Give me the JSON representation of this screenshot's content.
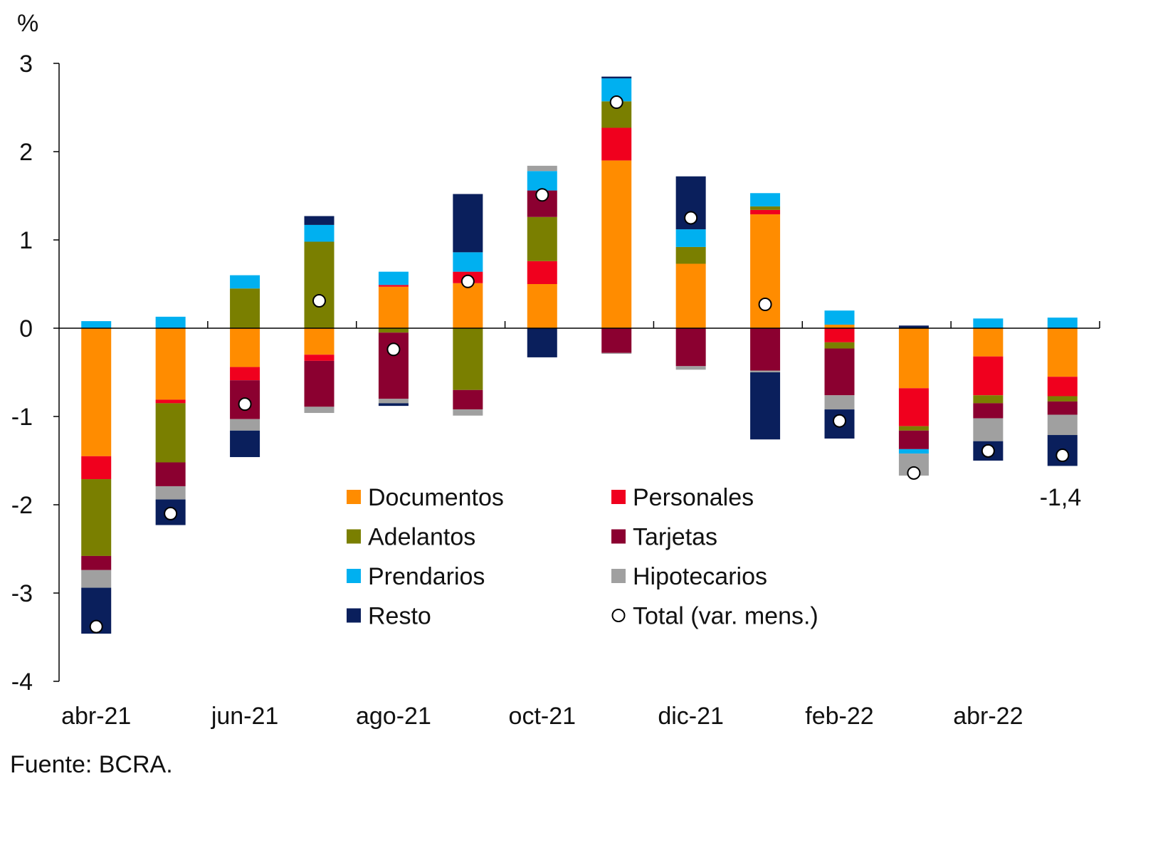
{
  "chart_data": {
    "type": "bar",
    "stacked": true,
    "ylabel": "%",
    "ylim": [
      -4,
      3
    ],
    "yticks": [
      3,
      2,
      1,
      0,
      -1,
      -2,
      -3,
      -4
    ],
    "grid": false,
    "legend_placement": "bottom-center",
    "categories": [
      "abr-21",
      "may-21",
      "jun-21",
      "jul-21",
      "ago-21",
      "sep-21",
      "oct-21",
      "nov-21",
      "dic-21",
      "ene-22",
      "feb-22",
      "mar-22",
      "abr-22",
      "may-22"
    ],
    "xtick_labels": [
      "abr-21",
      "jun-21",
      "ago-21",
      "oct-21",
      "dic-21",
      "feb-22",
      "abr-22"
    ],
    "series": [
      {
        "name": "Documentos",
        "color": "#FF8C00",
        "values": [
          -1.45,
          -0.81,
          -0.44,
          -0.3,
          0.47,
          0.51,
          0.5,
          1.9,
          0.73,
          1.29,
          0.04,
          -0.68,
          -0.32,
          -0.55
        ]
      },
      {
        "name": "Personales",
        "color": "#F0001E",
        "values": [
          -0.26,
          -0.04,
          -0.15,
          -0.07,
          0.02,
          0.13,
          0.26,
          0.37,
          0.0,
          0.05,
          -0.16,
          -0.43,
          -0.44,
          -0.22
        ]
      },
      {
        "name": "Adelantos",
        "color": "#7A7F00",
        "values": [
          -0.87,
          -0.67,
          0.45,
          0.98,
          -0.05,
          -0.7,
          0.5,
          0.3,
          0.19,
          0.04,
          -0.07,
          -0.05,
          -0.09,
          -0.06
        ]
      },
      {
        "name": "Tarjetas",
        "color": "#8B0030",
        "values": [
          -0.16,
          -0.27,
          -0.44,
          -0.52,
          -0.75,
          -0.22,
          0.3,
          -0.28,
          -0.43,
          -0.48,
          -0.53,
          -0.21,
          -0.17,
          -0.15
        ]
      },
      {
        "name": "Prendarios",
        "color": "#00B0F0",
        "values": [
          0.08,
          0.13,
          0.15,
          0.19,
          0.15,
          0.22,
          0.22,
          0.26,
          0.2,
          0.15,
          0.16,
          -0.05,
          0.11,
          0.12
        ]
      },
      {
        "name": "Hipotecarios",
        "color": "#A0A0A0",
        "values": [
          -0.2,
          -0.15,
          -0.13,
          -0.07,
          -0.05,
          -0.07,
          0.06,
          -0.01,
          -0.04,
          -0.02,
          -0.16,
          -0.25,
          -0.26,
          -0.23
        ]
      },
      {
        "name": "Resto",
        "color": "#0A1F5C",
        "values": [
          -0.52,
          -0.29,
          -0.3,
          0.1,
          -0.03,
          0.66,
          -0.33,
          0.02,
          0.6,
          -0.76,
          -0.33,
          0.03,
          -0.22,
          -0.35
        ]
      }
    ],
    "total": {
      "name": "Total (var. mens.)",
      "values": [
        -3.38,
        -2.1,
        -0.86,
        0.31,
        -0.24,
        0.53,
        1.51,
        2.56,
        1.25,
        0.27,
        -1.05,
        -1.64,
        -1.39,
        -1.44
      ]
    },
    "annotation": "-1,4",
    "source": "Fuente: BCRA."
  }
}
